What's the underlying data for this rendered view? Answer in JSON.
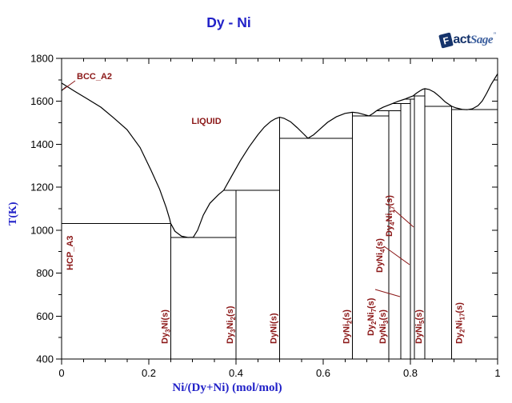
{
  "title": "Dy - Ni",
  "logo": {
    "f": "F",
    "act": "act",
    "sage": "Sage",
    "mark": "”"
  },
  "colors": {
    "accent_blue": "#2121c8",
    "label_red": "#8b1717",
    "line_black": "#000000",
    "background": "#ffffff",
    "logo_dark": "#15336b",
    "logo_light": "#3c5f9e"
  },
  "chart_data": {
    "type": "line",
    "title": "Dy - Ni",
    "xlabel": "Ni/(Dy+Ni) (mol/mol)",
    "ylabel": "T(K)",
    "xlim": [
      0,
      1
    ],
    "ylim": [
      400,
      1800
    ],
    "grid": false,
    "ticks": {
      "x_major": [
        0,
        0.2,
        0.4,
        0.6,
        0.8,
        1
      ],
      "x_labels": [
        "0",
        "0.2",
        "0.4",
        "0.6",
        "0.8",
        "1"
      ],
      "x_minor_step": 0.05,
      "y_major_step": 200,
      "y_minor_step": 100,
      "y_labels": [
        "400",
        "600",
        "800",
        "1000",
        "1200",
        "1400",
        "1600",
        "1800"
      ]
    },
    "liquidus": [
      [
        0,
        1685
      ],
      [
        0.03,
        1647
      ],
      [
        0.06,
        1610
      ],
      [
        0.09,
        1573
      ],
      [
        0.12,
        1522
      ],
      [
        0.15,
        1468
      ],
      [
        0.18,
        1385
      ],
      [
        0.205,
        1280
      ],
      [
        0.225,
        1190
      ],
      [
        0.24,
        1105
      ],
      [
        0.248,
        1050
      ],
      [
        0.25,
        1032
      ],
      [
        0.26,
        995
      ],
      [
        0.275,
        972
      ],
      [
        0.29,
        966
      ],
      [
        0.302,
        967
      ],
      [
        0.312,
        1000
      ],
      [
        0.325,
        1070
      ],
      [
        0.34,
        1125
      ],
      [
        0.36,
        1166
      ],
      [
        0.372,
        1186
      ],
      [
        0.39,
        1252
      ],
      [
        0.41,
        1323
      ],
      [
        0.43,
        1388
      ],
      [
        0.45,
        1444
      ],
      [
        0.465,
        1480
      ],
      [
        0.48,
        1507
      ],
      [
        0.49,
        1519
      ],
      [
        0.5,
        1526
      ],
      [
        0.51,
        1521
      ],
      [
        0.525,
        1505
      ],
      [
        0.54,
        1478
      ],
      [
        0.555,
        1448
      ],
      [
        0.565,
        1428
      ],
      [
        0.578,
        1444
      ],
      [
        0.59,
        1466
      ],
      [
        0.61,
        1502
      ],
      [
        0.63,
        1528
      ],
      [
        0.65,
        1544
      ],
      [
        0.667,
        1549
      ],
      [
        0.68,
        1546
      ],
      [
        0.695,
        1538
      ],
      [
        0.705,
        1532
      ],
      [
        0.714,
        1543
      ],
      [
        0.723,
        1557
      ],
      [
        0.737,
        1572
      ],
      [
        0.758,
        1589
      ],
      [
        0.772,
        1600
      ],
      [
        0.787,
        1610
      ],
      [
        0.798,
        1619
      ],
      [
        0.806,
        1625
      ],
      [
        0.814,
        1638
      ],
      [
        0.822,
        1649
      ],
      [
        0.828,
        1656
      ],
      [
        0.8333,
        1659
      ],
      [
        0.843,
        1655
      ],
      [
        0.855,
        1642
      ],
      [
        0.868,
        1620
      ],
      [
        0.88,
        1597
      ],
      [
        0.8947,
        1577
      ],
      [
        0.905,
        1569
      ],
      [
        0.92,
        1562
      ],
      [
        0.93,
        1561
      ],
      [
        0.942,
        1565
      ],
      [
        0.955,
        1580
      ],
      [
        0.965,
        1602
      ],
      [
        0.975,
        1638
      ],
      [
        0.985,
        1678
      ],
      [
        1,
        1728
      ]
    ],
    "bcc_transus": [
      [
        0,
        1650
      ],
      [
        0.005,
        1658
      ],
      [
        0.01,
        1667
      ]
    ],
    "invariant_lines": [
      {
        "T": 1032,
        "x1": 0,
        "x2": 0.25
      },
      {
        "T": 966,
        "x1": 0.25,
        "x2": 0.4
      },
      {
        "T": 1186,
        "x1": 0.372,
        "x2": 0.5
      },
      {
        "T": 1428,
        "x1": 0.5,
        "x2": 0.6667
      },
      {
        "T": 1532,
        "x1": 0.6667,
        "x2": 0.75
      },
      {
        "T": 1557,
        "x1": 0.723,
        "x2": 0.7778
      },
      {
        "T": 1589,
        "x1": 0.758,
        "x2": 0.8
      },
      {
        "T": 1610,
        "x1": 0.787,
        "x2": 0.80952
      },
      {
        "T": 1625,
        "x1": 0.806,
        "x2": 0.8333
      },
      {
        "T": 1577,
        "x1": 0.8333,
        "x2": 0.89474
      },
      {
        "T": 1561,
        "x1": 0.89474,
        "x2": 1
      }
    ],
    "compounds": [
      {
        "formula": "Dy_3Ni(s)",
        "x": 0.25,
        "top_T": 1032,
        "label": "axis"
      },
      {
        "formula": "Dy_3Ni_2(s)",
        "x": 0.4,
        "top_T": 1186,
        "label": "axis"
      },
      {
        "formula": "DyNi(s)",
        "x": 0.5,
        "top_T": 1526,
        "label": "axis"
      },
      {
        "formula": "DyNi_2(s)",
        "x": 0.6667,
        "top_T": 1549,
        "label": "axis"
      },
      {
        "formula": "DyNi_3(s)",
        "x": 0.75,
        "top_T": 1557,
        "label": "axis"
      },
      {
        "formula": "Dy_2Ni_7(s)",
        "x": 0.7778,
        "top_T": 1589,
        "label": "float",
        "anchor": [
          467,
          420
        ],
        "leader": [
          [
            469,
            362
          ],
          [
            500,
            371
          ]
        ]
      },
      {
        "formula": "DyNi_4(s)",
        "x": 0.8,
        "top_T": 1610,
        "label": "float",
        "anchor": [
          478,
          341
        ],
        "leader": [
          [
            480,
            308
          ],
          [
            512,
            331
          ]
        ]
      },
      {
        "formula": "Dy_4Ni_17(s)",
        "x": 0.80952,
        "top_T": 1625,
        "label": "float",
        "anchor": [
          490,
          296
        ],
        "leader": [
          [
            492,
            262
          ],
          [
            517,
            284
          ]
        ]
      },
      {
        "formula": "DyNi_5(s)",
        "x": 0.8333,
        "top_T": 1659,
        "label": "axis"
      },
      {
        "formula": "Dy_2Ni_17(s)",
        "x": 0.89474,
        "top_T": 1577,
        "label": "axis-right"
      }
    ],
    "phase_labels": [
      {
        "text": "BCC_A2",
        "px": [
          96,
          99
        ],
        "rotate": false,
        "anchor": "start",
        "leader": [
          [
            94,
            101
          ],
          [
            79,
            112
          ]
        ]
      },
      {
        "text": "HCP_A3",
        "px": [
          91,
          338
        ],
        "rotate": true,
        "anchor": "start"
      },
      {
        "text": "LIQUID",
        "px": [
          258,
          155
        ],
        "rotate": false,
        "anchor": "middle"
      }
    ]
  }
}
